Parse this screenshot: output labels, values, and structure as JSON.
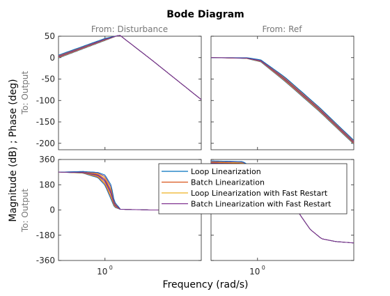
{
  "chart_data": {
    "type": "line",
    "title": "Bode Diagram",
    "xlabel": "Frequency  (rad/s)",
    "ylabel": "Magnitude (dB) ; Phase (deg)",
    "x_scale": "log",
    "xlim": [
      0.5,
      4.2
    ],
    "x_ticks": [
      {
        "value": 1,
        "base": "10",
        "exp": "0"
      }
    ],
    "columns": [
      {
        "label": "From: Disturbance"
      },
      {
        "label": "From: Ref"
      }
    ],
    "rows": [
      {
        "label": "To: Output",
        "kind": "magnitude",
        "ylim": [
          -215,
          50
        ],
        "ticks": [
          50,
          0,
          -50,
          -100,
          -150,
          -200
        ]
      },
      {
        "label": "To: Output",
        "kind": "phase",
        "ylim": [
          -360,
          360
        ],
        "ticks": [
          360,
          180,
          0,
          -180,
          -360
        ]
      }
    ],
    "colors": [
      "#0072bd",
      "#d95319",
      "#edb120",
      "#7e2f8e"
    ],
    "legend": {
      "placement": "center",
      "entries": [
        "Loop Linearization",
        "Batch Linearization",
        "Loop Linearization with Fast Restart",
        "Batch Linearization with Fast Restart"
      ]
    },
    "panels": [
      {
        "name": "magnitude-disturbance",
        "row": 0,
        "col": 0,
        "bands": [
          {
            "x": [
              0.5,
              1.0,
              1.2,
              1.25
            ],
            "lo": [
              -1,
              40,
              51,
              52
            ],
            "hi": [
              6,
              45,
              51,
              52
            ]
          },
          {
            "x": [
              1.25,
              2.0,
              4.2
            ],
            "lo": [
              52,
              -5,
              -98
            ],
            "hi": [
              52,
              -5,
              -98
            ]
          }
        ]
      },
      {
        "name": "magnitude-ref",
        "row": 0,
        "col": 1,
        "bands": [
          {
            "x": [
              0.5,
              0.85,
              1.05,
              1.5,
              2.5,
              4.2
            ],
            "lo": [
              0,
              -2,
              -10,
              -55,
              -125,
              -202
            ],
            "hi": [
              0,
              0,
              -5,
              -45,
              -115,
              -193
            ]
          }
        ]
      },
      {
        "name": "phase-disturbance",
        "row": 1,
        "col": 0,
        "bands": [
          {
            "x": [
              0.5,
              0.72,
              0.9,
              1.0,
              1.1,
              1.15,
              1.25
            ],
            "lo": [
              270,
              262,
              230,
              175,
              70,
              20,
              5
            ],
            "hi": [
              270,
              275,
              268,
              250,
              175,
              60,
              10
            ]
          },
          {
            "x": [
              1.25,
              2.0,
              4.2
            ],
            "lo": [
              5,
              0,
              0
            ],
            "hi": [
              5,
              0,
              0
            ]
          }
        ]
      },
      {
        "name": "phase-ref",
        "row": 1,
        "col": 1,
        "bands": [
          {
            "x": [
              0.5,
              0.8,
              0.9,
              1.05,
              1.2
            ],
            "lo": [
              320,
              310,
              290,
              275,
              270
            ],
            "hi": [
              350,
              345,
              315,
              290,
              275
            ]
          },
          {
            "x": [
              1.2,
              1.4,
              1.6,
              1.9,
              2.2,
              2.6,
              3.2,
              4.2
            ],
            "lo": [
              270,
              200,
              90,
              -40,
              -140,
              -205,
              -225,
              -235
            ],
            "hi": [
              270,
              200,
              90,
              -40,
              -140,
              -205,
              -225,
              -235
            ]
          }
        ]
      }
    ]
  }
}
